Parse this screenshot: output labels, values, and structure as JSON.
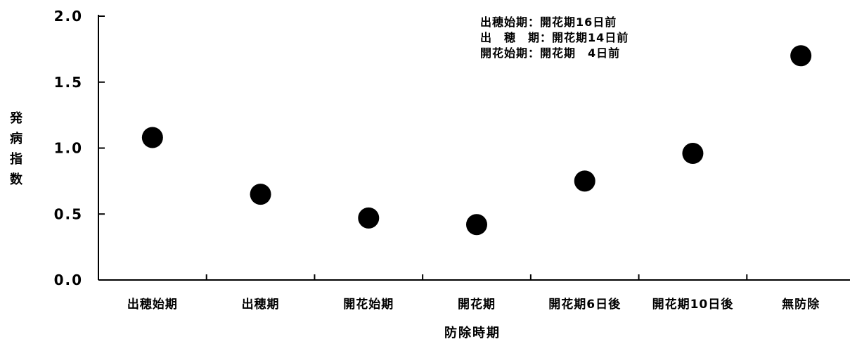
{
  "chart_data": {
    "type": "scatter",
    "categories": [
      "出穂始期",
      "出穂期",
      "開花始期",
      "開花期",
      "開花期6日後",
      "開花期10日後",
      "無防除"
    ],
    "values": [
      1.08,
      0.65,
      0.47,
      0.42,
      0.75,
      0.96,
      1.7
    ],
    "xlabel": "防除時期",
    "ylabel": "発病指数",
    "ylim": [
      0,
      2.0
    ],
    "yticks": [
      "0.0",
      "0.5",
      "1.0",
      "1.5",
      "2.0"
    ],
    "tick_values": [
      0,
      0.5,
      1.0,
      1.5,
      2.0
    ],
    "annotations": [
      "出穂始期：開花期16日前",
      "出　穂　期：開花期14日前",
      "開花始期：開花期　4日前"
    ],
    "grid": false,
    "marker_color": "#000000"
  }
}
